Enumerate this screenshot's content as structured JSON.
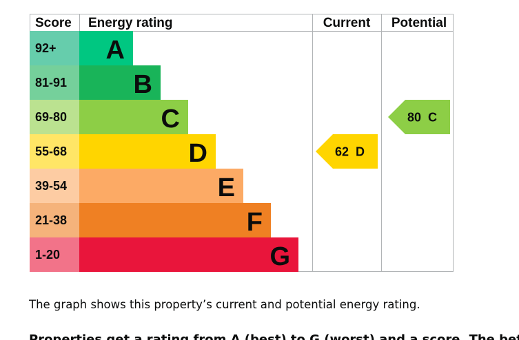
{
  "chart_data": {
    "type": "bar",
    "headers": {
      "score": "Score",
      "rating": "Energy rating",
      "current": "Current",
      "potential": "Potential"
    },
    "bands": [
      {
        "score": "92+",
        "letter": "A",
        "color": "#00c781",
        "score_bg": "#66cdac"
      },
      {
        "score": "81-91",
        "letter": "B",
        "color": "#19b459",
        "score_bg": "#75d09b"
      },
      {
        "score": "69-80",
        "letter": "C",
        "color": "#8dce46",
        "score_bg": "#bbe290"
      },
      {
        "score": "55-68",
        "letter": "D",
        "color": "#ffd500",
        "score_bg": "#ffe666"
      },
      {
        "score": "39-54",
        "letter": "E",
        "color": "#fcaa65",
        "score_bg": "#fdcca3"
      },
      {
        "score": "21-38",
        "letter": "F",
        "color": "#ef8023",
        "score_bg": "#f5b37b"
      },
      {
        "score": "1-20",
        "letter": "G",
        "color": "#e9153b",
        "score_bg": "#f27389"
      }
    ],
    "current": {
      "value": 62,
      "letter": "D",
      "label": "62  D",
      "color": "#ffd500"
    },
    "potential": {
      "value": 80,
      "letter": "C",
      "label": "80  C",
      "color": "#8dce46"
    }
  },
  "caption": "The graph shows this property’s current and potential energy rating.",
  "cut_text": "Properties get a rating from A (best) to G (worst) and a score. The better"
}
